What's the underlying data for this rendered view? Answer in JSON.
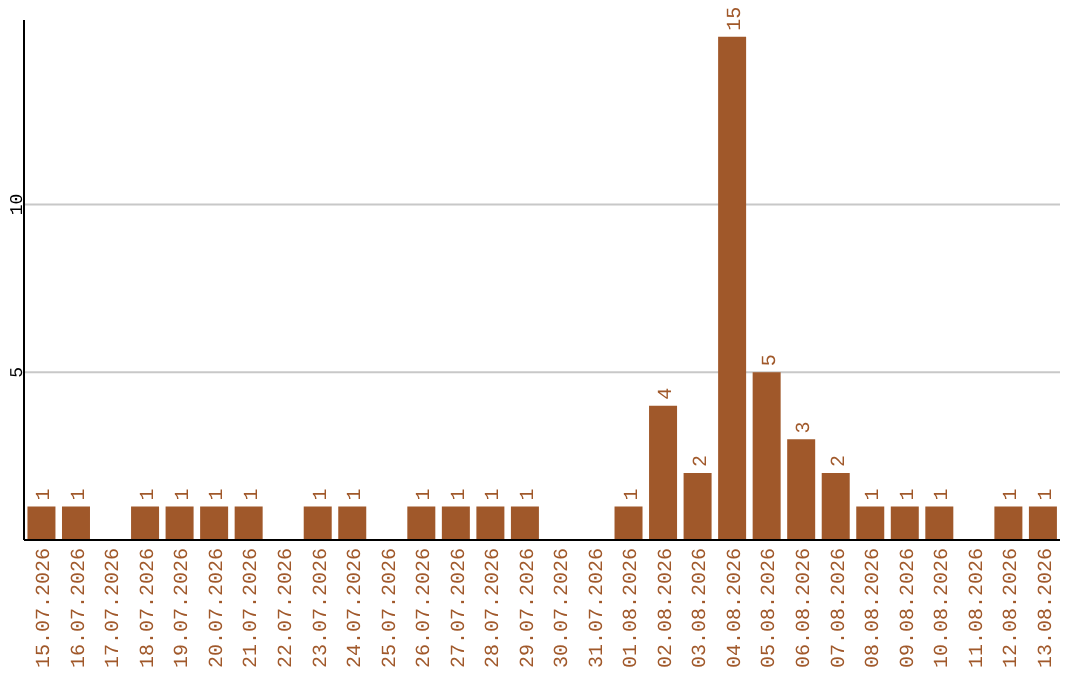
{
  "chart_data": {
    "type": "bar",
    "categories": [
      "15.07.2026",
      "16.07.2026",
      "17.07.2026",
      "18.07.2026",
      "19.07.2026",
      "20.07.2026",
      "21.07.2026",
      "22.07.2026",
      "23.07.2026",
      "24.07.2026",
      "25.07.2026",
      "26.07.2026",
      "27.07.2026",
      "28.07.2026",
      "29.07.2026",
      "30.07.2026",
      "31.07.2026",
      "01.08.2026",
      "02.08.2026",
      "03.08.2026",
      "04.08.2026",
      "05.08.2026",
      "06.08.2026",
      "07.08.2026",
      "08.08.2026",
      "09.08.2026",
      "10.08.2026",
      "11.08.2026",
      "12.08.2026",
      "13.08.2026"
    ],
    "values": [
      1,
      1,
      0,
      1,
      1,
      1,
      1,
      0,
      1,
      1,
      0,
      1,
      1,
      1,
      1,
      0,
      0,
      1,
      4,
      2,
      15,
      5,
      3,
      2,
      1,
      1,
      1,
      0,
      1,
      1
    ],
    "value_labels": [
      "1",
      "1",
      null,
      "1",
      "1",
      "1",
      "1",
      null,
      "1",
      "1",
      null,
      "1",
      "1",
      "1",
      "1",
      null,
      null,
      "1",
      "4",
      "2",
      "15",
      "5",
      "3",
      "2",
      "1",
      "1",
      "1",
      null,
      "1",
      "1"
    ],
    "color": "#a0582a",
    "ylim": [
      0,
      15.5
    ],
    "yticks": [
      5,
      10
    ],
    "grid": "y"
  }
}
